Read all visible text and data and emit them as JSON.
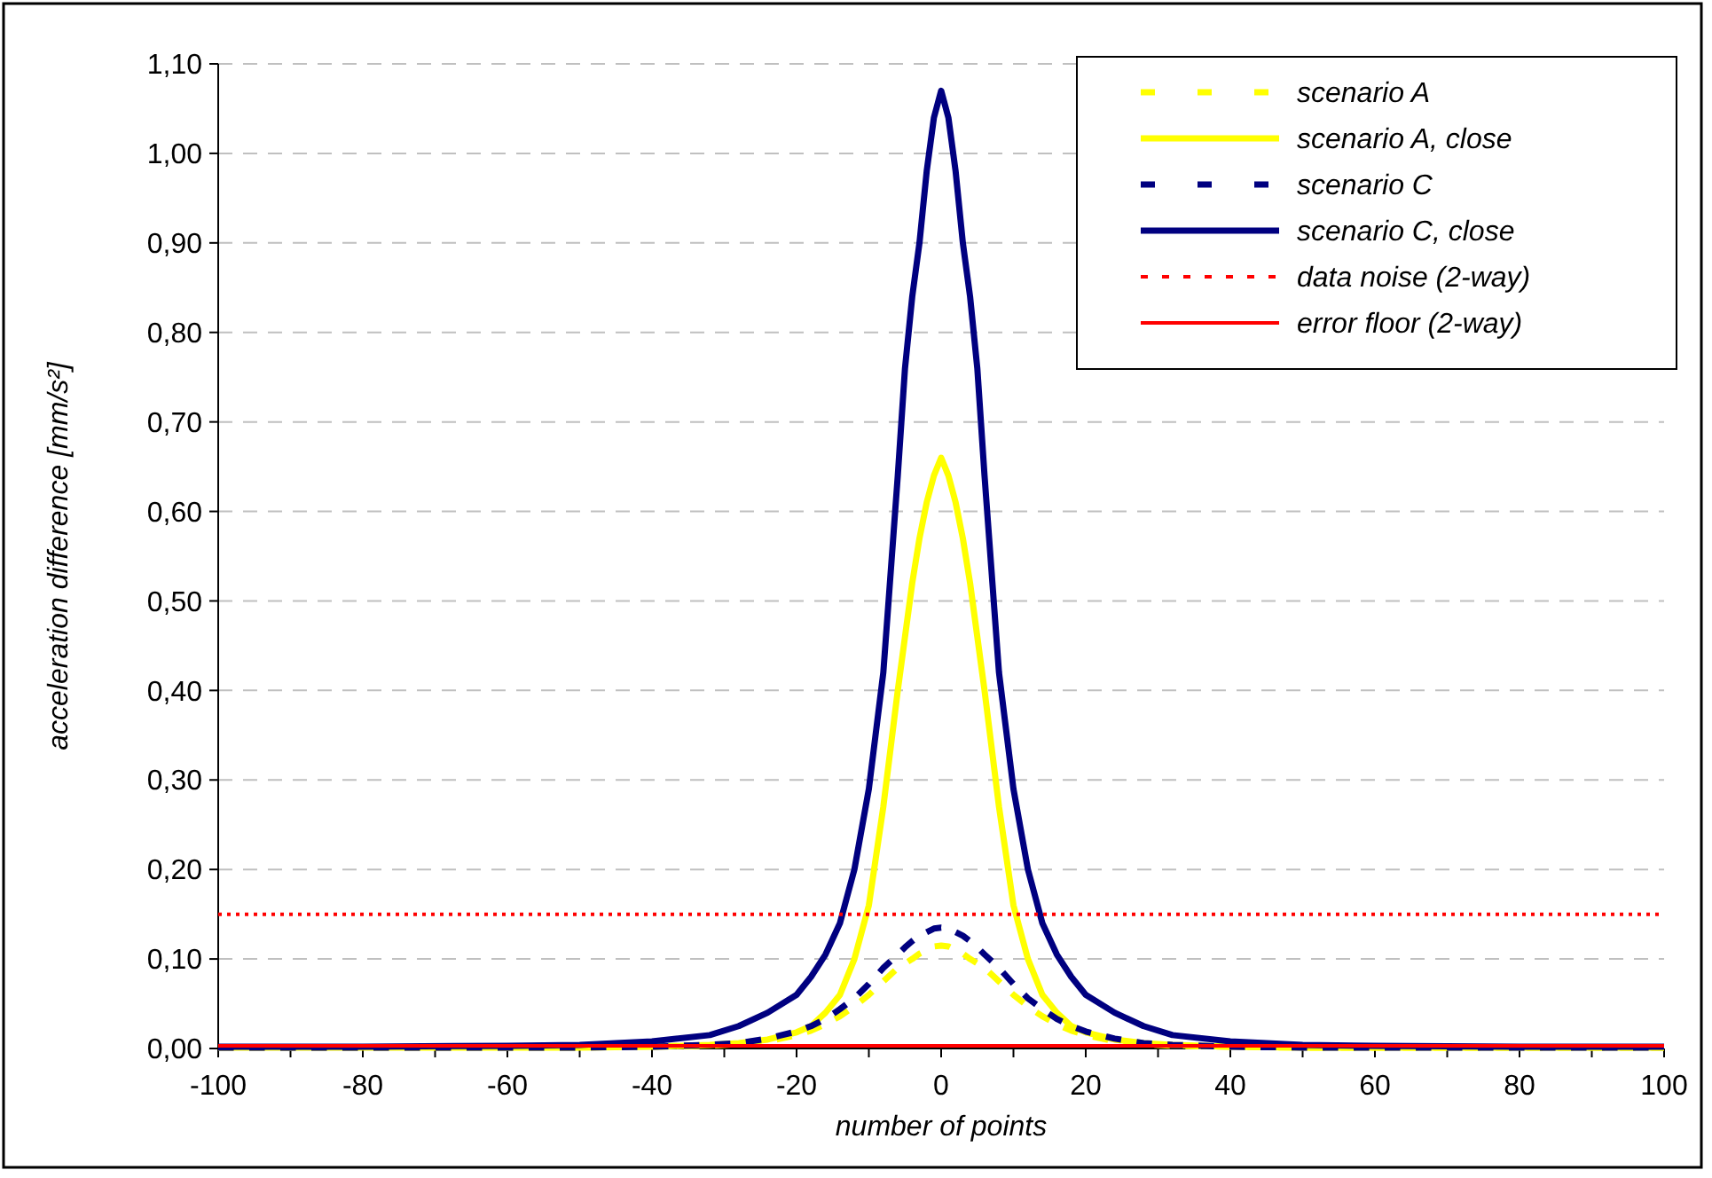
{
  "chart_data": {
    "type": "line",
    "xlabel": "number of points",
    "ylabel": "acceleration difference [mm/s²]",
    "x": [
      -100,
      -80,
      -60,
      -50,
      -40,
      -32,
      -28,
      -24,
      -20,
      -18,
      -16,
      -14,
      -12,
      -10,
      -8,
      -6,
      -5,
      -4,
      -3,
      -2,
      -1,
      0,
      1,
      2,
      3,
      4,
      5,
      6,
      8,
      10,
      12,
      14,
      16,
      18,
      20,
      24,
      28,
      32,
      40,
      50,
      60,
      80,
      100
    ],
    "series": [
      {
        "name": "scenario A",
        "color": "#ffff00",
        "line_style": "dashed",
        "values": [
          0.001,
          0.001,
          0.001,
          0.001,
          0.002,
          0.003,
          0.005,
          0.008,
          0.015,
          0.02,
          0.027,
          0.036,
          0.047,
          0.06,
          0.075,
          0.09,
          0.095,
          0.1,
          0.106,
          0.11,
          0.114,
          0.115,
          0.114,
          0.11,
          0.106,
          0.1,
          0.095,
          0.09,
          0.075,
          0.06,
          0.047,
          0.036,
          0.027,
          0.02,
          0.015,
          0.008,
          0.005,
          0.003,
          0.002,
          0.001,
          0.001,
          0.001,
          0.001
        ]
      },
      {
        "name": "scenario A, close",
        "color": "#ffff00",
        "line_style": "solid",
        "values": [
          0.001,
          0.001,
          0.001,
          0.001,
          0.002,
          0.004,
          0.006,
          0.01,
          0.018,
          0.025,
          0.04,
          0.06,
          0.1,
          0.16,
          0.27,
          0.4,
          0.46,
          0.52,
          0.57,
          0.61,
          0.64,
          0.66,
          0.64,
          0.61,
          0.57,
          0.52,
          0.46,
          0.4,
          0.27,
          0.16,
          0.1,
          0.06,
          0.04,
          0.025,
          0.018,
          0.01,
          0.006,
          0.004,
          0.002,
          0.001,
          0.001,
          0.001,
          0.001
        ]
      },
      {
        "name": "scenario C",
        "color": "#000080",
        "line_style": "dashed",
        "values": [
          0.001,
          0.001,
          0.001,
          0.001,
          0.002,
          0.004,
          0.006,
          0.011,
          0.019,
          0.025,
          0.033,
          0.044,
          0.056,
          0.072,
          0.09,
          0.105,
          0.113,
          0.12,
          0.126,
          0.13,
          0.134,
          0.135,
          0.134,
          0.13,
          0.126,
          0.12,
          0.113,
          0.105,
          0.09,
          0.072,
          0.056,
          0.044,
          0.033,
          0.025,
          0.019,
          0.011,
          0.006,
          0.004,
          0.002,
          0.001,
          0.001,
          0.001,
          0.001
        ]
      },
      {
        "name": "scenario C, close",
        "color": "#000080",
        "line_style": "solid",
        "values": [
          0.002,
          0.002,
          0.003,
          0.004,
          0.008,
          0.015,
          0.025,
          0.04,
          0.06,
          0.08,
          0.105,
          0.14,
          0.2,
          0.29,
          0.42,
          0.64,
          0.76,
          0.84,
          0.9,
          0.98,
          1.04,
          1.07,
          1.04,
          0.98,
          0.9,
          0.84,
          0.76,
          0.64,
          0.42,
          0.29,
          0.2,
          0.14,
          0.105,
          0.08,
          0.06,
          0.04,
          0.025,
          0.015,
          0.008,
          0.004,
          0.003,
          0.002,
          0.002
        ]
      }
    ],
    "ref_lines": [
      {
        "axis": "y",
        "value": 0.15,
        "label": "data noise (2-way)",
        "color": "#ff0000",
        "line_style": "dotted"
      },
      {
        "axis": "y",
        "value": 0.003,
        "label": "error floor (2-way)",
        "color": "#ff0000",
        "line_style": "solid"
      }
    ],
    "xlim": [
      -100,
      100
    ],
    "xticks": [
      -100,
      {
        "value": -90,
        "label": null
      },
      -80,
      {
        "value": -70,
        "label": null
      },
      -60,
      {
        "value": -50,
        "label": null
      },
      -40,
      {
        "value": -30,
        "label": null
      },
      -20,
      {
        "value": -10,
        "label": null
      },
      0,
      {
        "value": 10,
        "label": null
      },
      20,
      {
        "value": 30,
        "label": null
      },
      40,
      {
        "value": 50,
        "label": null
      },
      60,
      {
        "value": 70,
        "label": null
      },
      80,
      {
        "value": 90,
        "label": null
      },
      100
    ],
    "ylim": [
      0,
      1.1
    ],
    "yticks": [
      {
        "value": 0,
        "label": "0,00"
      },
      {
        "value": 0.1,
        "label": "0,10"
      },
      {
        "value": 0.2,
        "label": "0,20"
      },
      {
        "value": 0.3,
        "label": "0,30"
      },
      {
        "value": 0.4,
        "label": "0,40"
      },
      {
        "value": 0.5,
        "label": "0,50"
      },
      {
        "value": 0.6,
        "label": "0,60"
      },
      {
        "value": 0.7,
        "label": "0,70"
      },
      {
        "value": 0.8,
        "label": "0,80"
      },
      {
        "value": 0.9,
        "label": "0,90"
      },
      {
        "value": 1,
        "label": "1,00"
      },
      {
        "value": 1.1,
        "label": "1,10"
      }
    ],
    "grid": "y",
    "legend": "top right"
  }
}
